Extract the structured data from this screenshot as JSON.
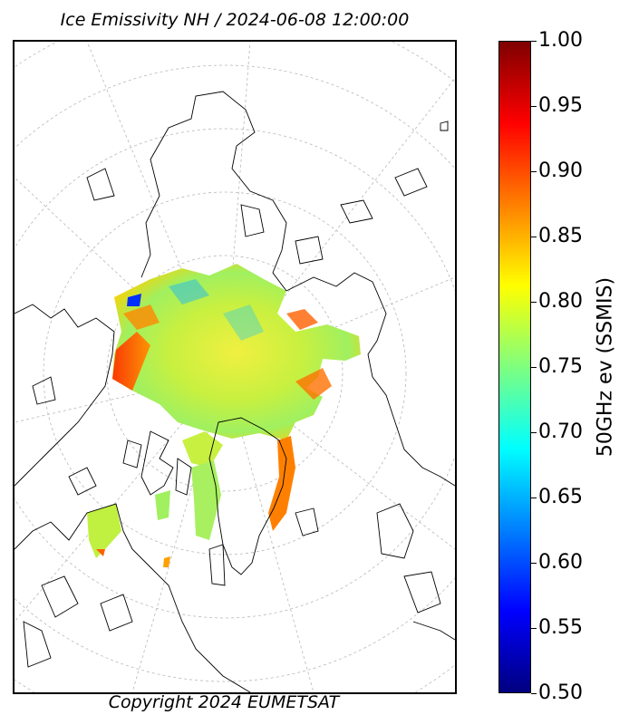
{
  "title": "Ice Emissivity NH / 2024-06-08 12:00:00",
  "copyright": "Copyright 2024 EUMETSAT",
  "colorbar": {
    "label": "50GHz ev (SSMIS)",
    "min": 0.5,
    "max": 1.0,
    "colormap": "jet",
    "ticks": [
      "1.00",
      "0.95",
      "0.90",
      "0.85",
      "0.80",
      "0.75",
      "0.70",
      "0.65",
      "0.60",
      "0.55",
      "0.50"
    ]
  },
  "map": {
    "projection": "north-polar-stereographic",
    "graticule": true,
    "colors": {
      "coastline": "#000000",
      "graticule": "#b0b0b0",
      "ice_high": "#ff4000",
      "ice_mid": "#b8f040",
      "ice_low": "#20d0c0"
    }
  }
}
